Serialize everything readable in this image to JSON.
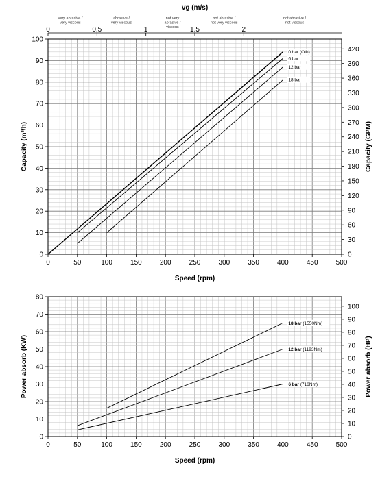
{
  "chart_data": [
    {
      "type": "line",
      "top_axis": {
        "label": "vg (m/s)",
        "ticks": [
          "0",
          "0,5",
          "1",
          "1,5",
          "2"
        ],
        "tick_rpm": [
          0,
          83.3,
          166.7,
          250,
          333.3
        ],
        "zones": [
          {
            "line1": "very abrasive /",
            "line2": "very viscous",
            "line3": "",
            "rpm": 38
          },
          {
            "line1": "abrasive /",
            "line2": "very viscous",
            "line3": "",
            "rpm": 125
          },
          {
            "line1": "not very",
            "line2": "abrasive /",
            "line3": "viscous",
            "rpm": 212
          },
          {
            "line1": "not  abrasive /",
            "line2": "not very viscous",
            "line3": "",
            "rpm": 300
          },
          {
            "line1": "not  abrasive /",
            "line2": "not  viscous",
            "line3": "",
            "rpm": 420
          }
        ]
      },
      "xlabel": "Speed (rpm)",
      "ylabel": "Capacity (m³/h)",
      "ylabel_right": "Capacity (GPM)",
      "xlim": [
        0,
        500
      ],
      "ylim": [
        0,
        100
      ],
      "ylim_right": [
        0,
        440
      ],
      "x_ticks": [
        "0",
        "50",
        "100",
        "150",
        "200",
        "250",
        "300",
        "350",
        "400",
        "450",
        "500"
      ],
      "y_ticks": [
        "0",
        "10",
        "20",
        "30",
        "40",
        "50",
        "60",
        "70",
        "80",
        "90",
        "100"
      ],
      "y_right_ticks": [
        "0",
        "30",
        "60",
        "90",
        "120",
        "150",
        "180",
        "210",
        "240",
        "270",
        "300",
        "330",
        "360",
        "390",
        "420"
      ],
      "grid": true,
      "series": [
        {
          "name": "0 bar (Oth)",
          "x": [
            0,
            400
          ],
          "y": [
            0,
            94
          ],
          "bold": true
        },
        {
          "name": "6 bar",
          "x": [
            50,
            400
          ],
          "y": [
            10,
            91
          ],
          "bold": false
        },
        {
          "name": "12 bar",
          "x": [
            50,
            400
          ],
          "y": [
            5,
            87
          ],
          "bold": false
        },
        {
          "name": "18 bar",
          "x": [
            100,
            400
          ],
          "y": [
            10,
            81
          ],
          "bold": false
        }
      ]
    },
    {
      "type": "line",
      "xlabel": "Speed (rpm)",
      "ylabel": "Power absorb (KW)",
      "ylabel_right": "Power absorb (HP)",
      "xlim": [
        0,
        500
      ],
      "ylim": [
        0,
        80
      ],
      "ylim_right": [
        0,
        107.3
      ],
      "x_ticks": [
        "0",
        "50",
        "100",
        "150",
        "200",
        "250",
        "300",
        "350",
        "400",
        "450",
        "500"
      ],
      "y_ticks": [
        "0",
        "10",
        "20",
        "30",
        "40",
        "50",
        "60",
        "70",
        "80"
      ],
      "y_right_ticks": [
        "0",
        "10",
        "20",
        "30",
        "40",
        "50",
        "60",
        "70",
        "80",
        "90",
        "100"
      ],
      "grid": true,
      "series": [
        {
          "name": "18 bar",
          "detail": "(1550Nm)",
          "x": [
            100,
            400
          ],
          "y": [
            16.2,
            65
          ]
        },
        {
          "name": "12 bar",
          "detail": "(1193Nm)",
          "x": [
            50,
            400
          ],
          "y": [
            6.2,
            50
          ]
        },
        {
          "name": "6 bar",
          "detail": "(716Nm)",
          "x": [
            50,
            400
          ],
          "y": [
            3.8,
            30
          ]
        }
      ]
    }
  ]
}
